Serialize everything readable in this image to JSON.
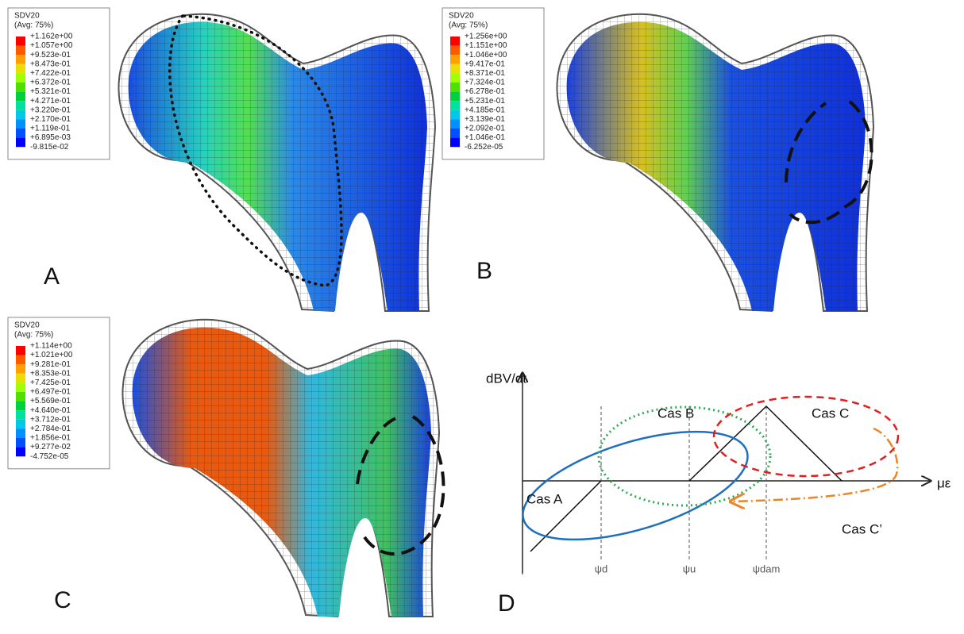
{
  "panels": [
    {
      "label": "A",
      "legend": {
        "title": "SDV20",
        "subtitle": "(Avg: 75%)",
        "values": [
          "+1.162e+00",
          "+1.057e+00",
          "+9.523e-01",
          "+8.473e-01",
          "+7.422e-01",
          "+6.372e-01",
          "+5.321e-01",
          "+4.271e-01",
          "+3.220e-01",
          "+2.170e-01",
          "+1.119e-01",
          "+6.895e-03",
          "-9.815e-02"
        ]
      }
    },
    {
      "label": "B",
      "legend": {
        "title": "SDV20",
        "subtitle": "(Avg: 75%)",
        "values": [
          "+1.256e+00",
          "+1.151e+00",
          "+1.046e+00",
          "+9.417e-01",
          "+8.371e-01",
          "+7.324e-01",
          "+6.278e-01",
          "+5.231e-01",
          "+4.185e-01",
          "+3.139e-01",
          "+2.092e-01",
          "+1.046e-01",
          "-6.252e-05"
        ]
      }
    },
    {
      "label": "C",
      "legend": {
        "title": "SDV20",
        "subtitle": "(Avg: 75%)",
        "values": [
          "+1.114e+00",
          "+1.021e+00",
          "+9.281e-01",
          "+8.353e-01",
          "+7.425e-01",
          "+6.497e-01",
          "+5.569e-01",
          "+4.640e-01",
          "+3.712e-01",
          "+2.784e-01",
          "+1.856e-01",
          "+9.277e-02",
          "-4.752e-05"
        ]
      }
    },
    {
      "label": "D"
    }
  ],
  "diagram": {
    "y_axis": "dBV/dt",
    "x_axis": "με",
    "cases": [
      "Cas A",
      "Cas B",
      "Cas C",
      "Cas C’"
    ],
    "thresholds": [
      "ψd",
      "ψu",
      "ψdam"
    ]
  }
}
